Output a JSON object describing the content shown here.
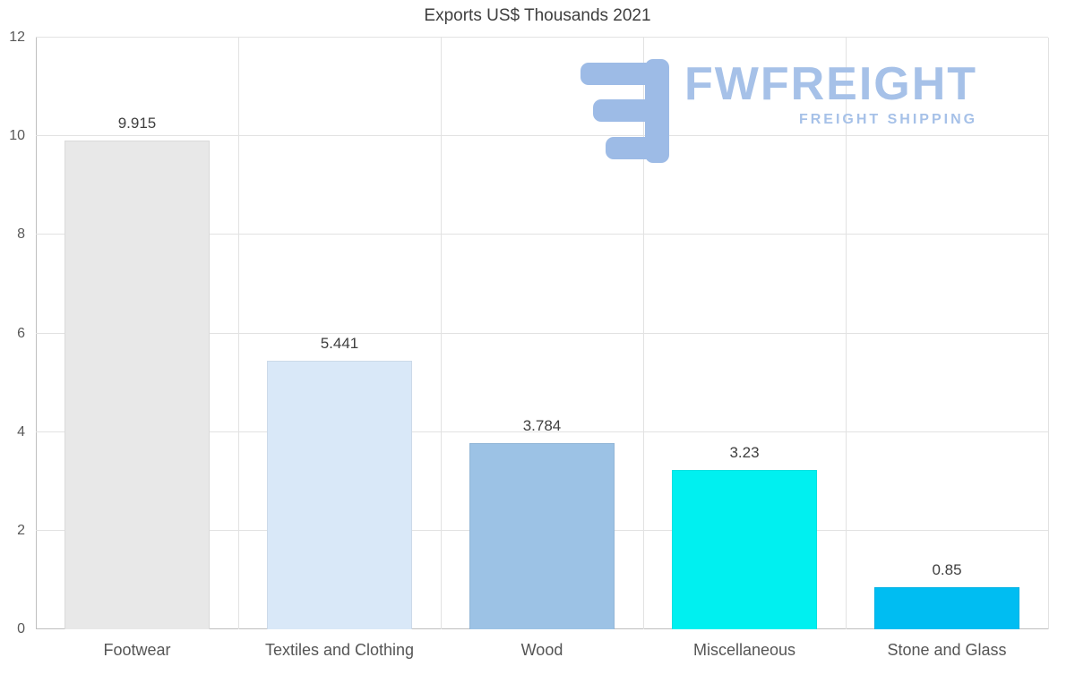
{
  "title": "Exports US$ Thousands 2021",
  "watermark": {
    "brand": "FWFREIGHT",
    "tagline": "FREIGHT SHIPPING",
    "color": "#a6c1e8",
    "mark_color": "#9dbbe6",
    "mark_icon": "stylized-f-logo"
  },
  "chart_data": {
    "type": "bar",
    "title": "Exports US$ Thousands 2021",
    "categories": [
      "Footwear",
      "Textiles and Clothing",
      "Wood",
      "Miscellaneous",
      "Stone and Glass"
    ],
    "values": [
      9.915,
      5.441,
      3.784,
      3.23,
      0.85
    ],
    "value_labels": [
      "9.915",
      "5.441",
      "3.784",
      "3.23",
      "0.85"
    ],
    "bar_colors": [
      "#e8e8e8",
      "#d9e8f8",
      "#9cc2e5",
      "#00f0f0",
      "#00bdf2"
    ],
    "xlabel": "",
    "ylabel": "",
    "ylim": [
      0,
      12
    ],
    "yticks": [
      0,
      2,
      4,
      6,
      8,
      10,
      12
    ],
    "grid": true,
    "legend": "none"
  }
}
